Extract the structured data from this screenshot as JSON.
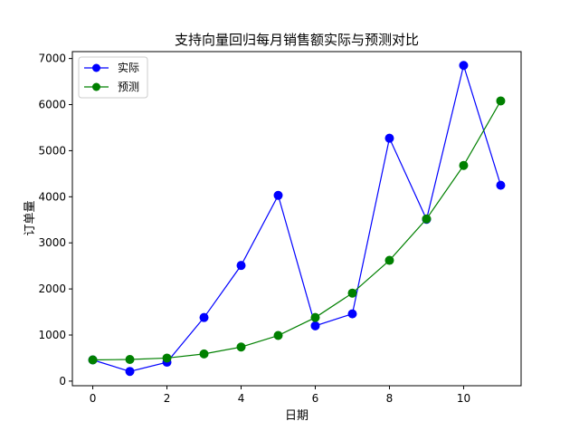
{
  "chart_data": {
    "type": "line",
    "title": "支持向量回归每月销售额实际与预测对比",
    "xlabel": "日期",
    "ylabel": "订单量",
    "x": [
      0,
      1,
      2,
      3,
      4,
      5,
      6,
      7,
      8,
      9,
      10,
      11
    ],
    "xlim": [
      -0.55,
      11.55
    ],
    "ylim": [
      -100,
      7150
    ],
    "xticks": [
      0,
      2,
      4,
      6,
      8,
      10
    ],
    "yticks": [
      0,
      1000,
      2000,
      3000,
      4000,
      5000,
      6000,
      7000
    ],
    "grid": false,
    "legend_position": "top-left",
    "series": [
      {
        "name": "实际",
        "color": "#0000ff",
        "values": [
          460,
          210,
          410,
          1380,
          2510,
          4030,
          1200,
          1460,
          5270,
          3510,
          6850,
          4250
        ]
      },
      {
        "name": "预测",
        "color": "#008000",
        "values": [
          460,
          470,
          500,
          590,
          740,
          990,
          1380,
          1910,
          2620,
          3520,
          4680,
          6080
        ]
      }
    ]
  }
}
